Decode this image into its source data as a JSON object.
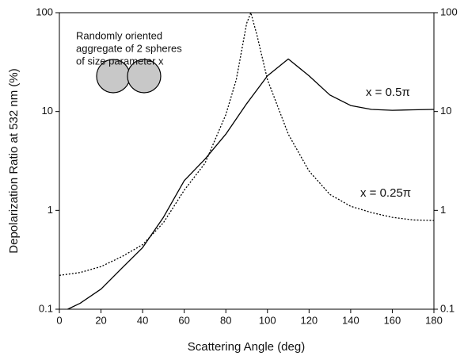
{
  "chart_data": {
    "type": "line",
    "xlabel": "Scattering Angle (deg)",
    "ylabel": "Depolarization Ratio at 532 nm (%)",
    "annotation_lines": [
      "Randomly oriented",
      "aggregate of 2 spheres",
      "of size parameter x"
    ],
    "xlim": [
      0,
      180
    ],
    "xticks": [
      0,
      20,
      40,
      60,
      80,
      100,
      120,
      140,
      160,
      180
    ],
    "ylim": [
      0.1,
      100
    ],
    "yticks": [
      0.1,
      1,
      10,
      100
    ],
    "y2lim": [
      0.1,
      100
    ],
    "y2ticks": [
      0.1,
      1,
      10,
      100
    ],
    "yscale": "log",
    "series": [
      {
        "name": "x = 0.5π",
        "color": "#000000",
        "dash": "solid",
        "x": [
          4,
          10,
          20,
          30,
          40,
          50,
          60,
          70,
          80,
          90,
          100,
          110,
          120,
          130,
          140,
          150,
          160,
          170,
          180
        ],
        "values": [
          0.1,
          0.115,
          0.16,
          0.26,
          0.42,
          0.85,
          2.0,
          3.3,
          5.9,
          12,
          23,
          34,
          23,
          14.7,
          11.5,
          10.5,
          10.3,
          10.4,
          10.5
        ]
      },
      {
        "name": "x = 0.25π",
        "color": "#000000",
        "dash": "dotted",
        "x": [
          0,
          10,
          20,
          30,
          40,
          50,
          60,
          70,
          80,
          85,
          90,
          92,
          95,
          100,
          110,
          120,
          130,
          140,
          150,
          160,
          170,
          180
        ],
        "values": [
          0.22,
          0.235,
          0.27,
          0.34,
          0.45,
          0.75,
          1.6,
          3.0,
          9.3,
          21,
          78,
          100,
          59,
          21,
          5.9,
          2.5,
          1.45,
          1.1,
          0.95,
          0.85,
          0.8,
          0.79
        ]
      }
    ]
  }
}
